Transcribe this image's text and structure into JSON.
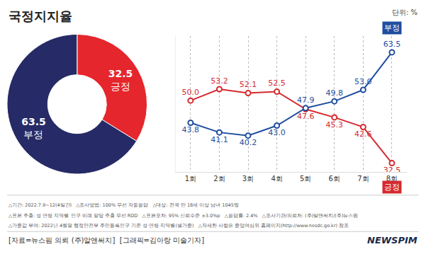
{
  "chart_data": [
    {
      "type": "pie",
      "title": "국정지지율",
      "subtitle": "단위: %",
      "categories": [
        "긍정",
        "부정"
      ],
      "values": [
        32.5,
        63.5
      ],
      "colors": [
        "#e5262c",
        "#262a66"
      ],
      "data_labels": true
    },
    {
      "type": "line",
      "categories": [
        "1회",
        "2회",
        "3회",
        "4회",
        "5회",
        "6회",
        "7회",
        "8회"
      ],
      "series": [
        {
          "name": "긍정",
          "color": "#d52a30",
          "marker": "circle",
          "values": [
            50.0,
            53.2,
            52.1,
            52.5,
            47.6,
            45.3,
            42.6,
            32.5
          ],
          "value_labels": [
            "50.0",
            "53.2",
            "52.1",
            "52.5",
            "47.6",
            "45.3",
            "42.6",
            "32.5"
          ]
        },
        {
          "name": "부정",
          "color": "#1f4ea0",
          "marker": "circle",
          "values": [
            43.8,
            41.1,
            40.2,
            43.0,
            47.9,
            49.8,
            53.0,
            63.5
          ],
          "value_labels": [
            "43.8",
            "41.1",
            "40.2",
            "43.0",
            "47.9",
            "49.8",
            "53.0",
            "63.5"
          ]
        }
      ],
      "ylim": [
        30,
        68
      ],
      "tick_labels": "x",
      "grid": true,
      "data_labels": true
    }
  ],
  "notes": [
    "△기간: 2022.7.9~12(4일간)   △조사방법: 100% 무선 자동응답   △대상: 전국 만 18세 이상 남녀 1045명",
    "△표본 추출: 성 연령 지역별 인구 비례 할당 추출 무선 RDD   △표본오차: 95% 신뢰수준 ±3.0%p   △응답률: 2.4%   △조사기관/의뢰처: (주)알앤써치/(주)뉴스핌",
    "△가중값 부여: 2022년 4월말 행정안전부 주민등록인구 기준 성·연령·지역별(셀가중)   △자세한 사항은 중앙여심위 홈페이지(http://www.nesdc.go.kr) 참조"
  ],
  "source": "[자료=뉴스핌 의뢰 (주)알앤써치]  [그래픽=김아랑 미술기자]",
  "logo": "NEWSPIM"
}
